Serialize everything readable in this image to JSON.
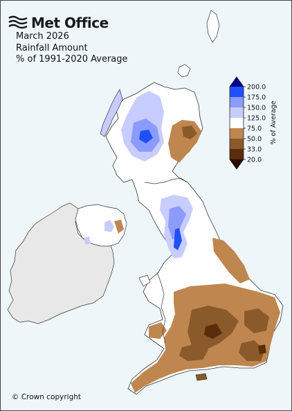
{
  "header": {
    "brand": "Met Office",
    "period": "March 2026",
    "variable": "Rainfall Amount",
    "baseline": "% of 1991-2020 Average"
  },
  "footer": {
    "copyright": "© Crown copyright"
  },
  "legend": {
    "axis_label": "% of Average",
    "ticks": [
      "200.0",
      "175.0",
      "150.0",
      "125.0",
      "75.0",
      "50.0",
      "33.0",
      "20.0"
    ],
    "bins": [
      {
        "range": ">200",
        "color": "#00008b"
      },
      {
        "range": "175-200",
        "color": "#1e50ff"
      },
      {
        "range": "150-175",
        "color": "#8c9bff"
      },
      {
        "range": "125-150",
        "color": "#c8cdff"
      },
      {
        "range": "75-125",
        "color": "#ffffff"
      },
      {
        "range": "50-75",
        "color": "#c08650"
      },
      {
        "range": "33-50",
        "color": "#8b5a2b"
      },
      {
        "range": "20-33",
        "color": "#5a2d0c"
      },
      {
        "range": "<20",
        "color": "#2b0a00"
      }
    ]
  },
  "map": {
    "sea_color": "#eef6fa",
    "non_uk_land_color": "#e8e8e8",
    "highlights": {
      "wetter": "Western and central Highlands, Cumbria and Pennines above average",
      "drier": "North-east Scotland, eastern and southern England below average"
    }
  }
}
